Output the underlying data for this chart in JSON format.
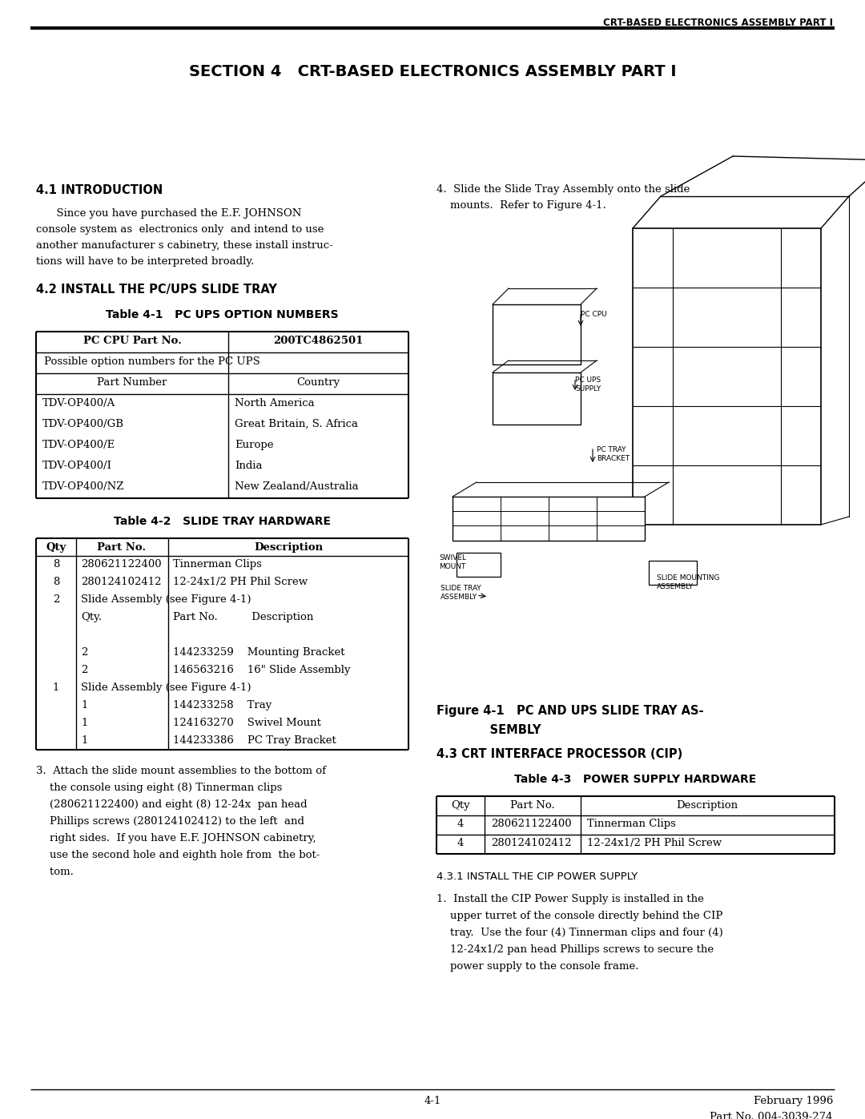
{
  "header_text": "CRT-BASED ELECTRONICS ASSEMBLY PART I",
  "section_title": "SECTION 4   CRT-BASED ELECTRONICS ASSEMBLY PART I",
  "section_41_title": "4.1 INTRODUCTION",
  "section_41_text_lines": [
    "      Since you have purchased the E.F. JOHNSON",
    "console system as  electronics only  and intend to use",
    "another manufacturer s cabinetry, these install instruc-",
    "tions will have to be interpreted broadly."
  ],
  "section_42_title": "4.2 INSTALL THE PC/UPS SLIDE TRAY",
  "table1_title": "Table 4-1   PC UPS OPTION NUMBERS",
  "table1_col1_header": "PC CPU Part No.",
  "table1_col2_header": "200TC4862501",
  "table1_row2": "Possible option numbers for the PC UPS",
  "table1_row3_col1": "Part Number",
  "table1_row3_col2": "Country",
  "table1_data": [
    [
      "TDV-OP400/A",
      "North America"
    ],
    [
      "TDV-OP400/GB",
      "Great Britain, S. Africa"
    ],
    [
      "TDV-OP400/E",
      "Europe"
    ],
    [
      "TDV-OP400/I",
      "India"
    ],
    [
      "TDV-OP400/NZ",
      "New Zealand/Australia"
    ]
  ],
  "table2_title": "Table 4-2   SLIDE TRAY HARDWARE",
  "step3_text_lines": [
    "3.  Attach the slide mount assemblies to the bottom of",
    "    the console using eight (8) Tinnerman clips",
    "    (280621122400) and eight (8) 12-24x  pan head",
    "    Phillips screws (280124102412) to the left  and",
    "    right sides.  If you have E.F. JOHNSON cabinetry,",
    "    use the second hole and eighth hole from  the bot-",
    "    tom."
  ],
  "step4_text_lines": [
    "4.  Slide the Slide Tray Assembly onto the slide",
    "    mounts.  Refer to Figure 4-1."
  ],
  "figure_caption_line1": "Figure 4-1   PC AND UPS SLIDE TRAY AS-",
  "figure_caption_line2": "             SEMBLY",
  "section_43_title": "4.3 CRT INTERFACE PROCESSOR (CIP)",
  "table3_title": "Table 4-3   POWER SUPPLY HARDWARE",
  "table3_data": [
    [
      "4",
      "280621122400",
      "Tinnerman Clips"
    ],
    [
      "4",
      "280124102412",
      "12-24x1/2 PH Phil Screw"
    ]
  ],
  "section_431_title": "4.3.1 INSTALL THE CIP POWER SUPPLY",
  "section_431_step1_lines": [
    "1.  Install the CIP Power Supply is installed in the",
    "    upper turret of the console directly behind the CIP",
    "    tray.  Use the four (4) Tinnerman clips and four (4)",
    "    12-24x1/2 pan head Phillips screws to secure the",
    "    power supply to the console frame."
  ],
  "footer_page": "4-1",
  "footer_date": "February 1996",
  "footer_part": "Part No. 004-3039-274",
  "bg_color": "#ffffff"
}
